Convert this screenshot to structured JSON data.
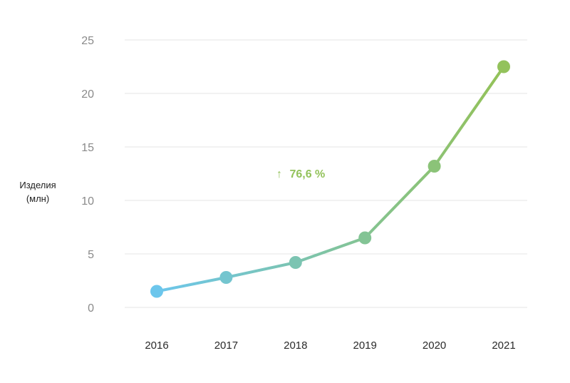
{
  "chart_data": {
    "type": "line",
    "x": [
      "2016",
      "2017",
      "2018",
      "2019",
      "2020",
      "2021"
    ],
    "series": [
      {
        "values": [
          1.5,
          2.8,
          4.2,
          6.5,
          13.2,
          22.5
        ]
      }
    ],
    "ylabel_lines": [
      "Изделия",
      "(млн)"
    ],
    "yticks": [
      0,
      5,
      10,
      15,
      20,
      25
    ],
    "ylim": [
      0,
      25
    ],
    "grid": true,
    "annotation": {
      "arrow": "↑",
      "text": "76,6 %"
    },
    "colors": {
      "start": "#6cc6ec",
      "end": "#93c25b",
      "grid": "#e6e6e6"
    }
  }
}
